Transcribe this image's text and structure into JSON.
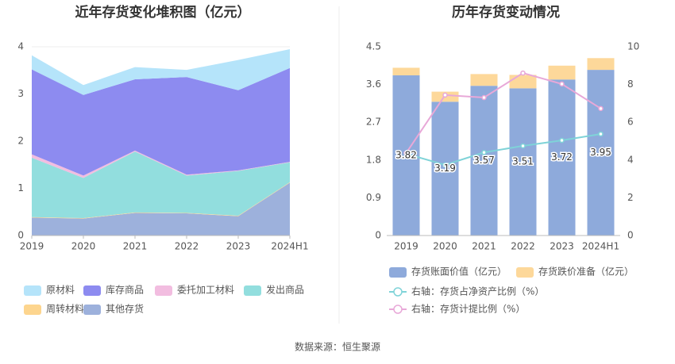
{
  "chart_data": [
    {
      "type": "area",
      "title": "近年存货变化堆积图（亿元）",
      "stacked": true,
      "categories": [
        "2019",
        "2020",
        "2021",
        "2022",
        "2023",
        "2024H1"
      ],
      "series": [
        {
          "name": "原材料",
          "color": "#b5e4fa",
          "values": [
            0.3,
            0.21,
            0.26,
            0.15,
            0.64,
            0.4
          ]
        },
        {
          "name": "库存商品",
          "color": "#8d8bf0",
          "values": [
            1.8,
            1.71,
            1.51,
            2.07,
            1.7,
            1.99
          ]
        },
        {
          "name": "委托加工材料",
          "color": "#f2bde0",
          "values": [
            0.07,
            0.05,
            0.02,
            0.02,
            0.01,
            0.01
          ]
        },
        {
          "name": "发出商品",
          "color": "#92dede",
          "values": [
            1.26,
            0.85,
            1.29,
            0.79,
            0.95,
            0.42
          ]
        },
        {
          "name": "周转材料",
          "color": "#fdd58e",
          "values": [
            0.01,
            0.01,
            0.01,
            0.01,
            0.01,
            0.01
          ]
        },
        {
          "name": "其他存货",
          "color": "#9db1dc",
          "values": [
            0.38,
            0.36,
            0.48,
            0.47,
            0.41,
            1.12
          ]
        }
      ],
      "ylim": [
        0,
        4
      ],
      "yticks": [
        0,
        1,
        2,
        3,
        4
      ],
      "grid": true
    },
    {
      "type": "bar",
      "title": "历年存货变动情况",
      "stacked": true,
      "categories": [
        "2019",
        "2020",
        "2021",
        "2022",
        "2023",
        "2024H1"
      ],
      "series": [
        {
          "name": "存货账面价值（亿元）",
          "color": "#8eaadb",
          "values": [
            3.82,
            3.19,
            3.57,
            3.51,
            3.72,
            3.95
          ]
        },
        {
          "name": "存货跌价准备（亿元）",
          "color": "#fdd89a",
          "values": [
            0.18,
            0.24,
            0.28,
            0.32,
            0.33,
            0.28
          ]
        },
        {
          "name": "右轴：存货占净资产比例（%）",
          "color": "#7fd3d8",
          "type": "line",
          "axis": "y2",
          "values": [
            4.33,
            3.74,
            4.4,
            4.75,
            5.04,
            5.38
          ]
        },
        {
          "name": "右轴：存货计提比例（%）",
          "color": "#e8a8d8",
          "type": "line",
          "axis": "y2",
          "values": [
            4.37,
            7.44,
            7.31,
            8.61,
            8.03,
            6.73
          ]
        }
      ],
      "ylim": [
        0,
        4.5
      ],
      "yticks": [
        0,
        0.9,
        1.8,
        2.7,
        3.6,
        4.5
      ],
      "y2lim": [
        0,
        10
      ],
      "y2ticks": [
        0,
        2,
        4,
        6,
        8,
        10
      ],
      "grid": false
    }
  ],
  "source": "数据来源：恒生聚源"
}
